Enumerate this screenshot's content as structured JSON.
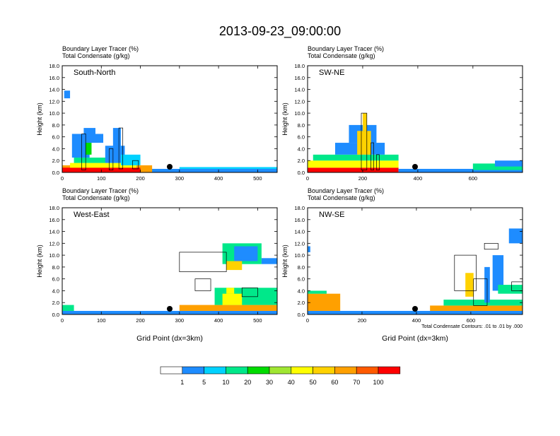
{
  "main_title": "2013-09-23_09:00:00",
  "colors": {
    "palette": [
      "#ffffff",
      "#1e8cff",
      "#00d2ff",
      "#00e88a",
      "#00dc00",
      "#a0e632",
      "#ffff00",
      "#ffd200",
      "#ffa000",
      "#ff5a00",
      "#ff0000"
    ]
  },
  "colorbar": {
    "labels": [
      "1",
      "5",
      "10",
      "20",
      "30",
      "40",
      "50",
      "60",
      "70",
      "100"
    ]
  },
  "chart_data": [
    {
      "type": "heatmap",
      "name": "South-North",
      "title_line1": "Boundary Layer Tracer   (%)",
      "title_line2": "Total Condensate   (g/kg)",
      "ylabel": "Height (km)",
      "xlabel": "",
      "ylim": [
        0,
        18
      ],
      "xlim": [
        0,
        550
      ],
      "xticks": [
        "0",
        "100",
        "200",
        "300",
        "400",
        "500"
      ],
      "xtick_values": [
        0,
        100,
        200,
        300,
        400,
        500
      ],
      "yticks": [
        "0.0",
        "2.0",
        "4.0",
        "6.0",
        "8.0",
        "10.0",
        "12.0",
        "14.0",
        "16.0",
        "18.0"
      ],
      "marker_x": 275,
      "cells": [
        [
          0,
          550,
          0,
          0.6,
          1
        ],
        [
          0,
          230,
          0,
          1.2,
          8
        ],
        [
          0,
          200,
          0,
          0.8,
          10
        ],
        [
          20,
          190,
          0.8,
          1.6,
          6
        ],
        [
          30,
          150,
          1.6,
          2.5,
          3
        ],
        [
          25,
          70,
          2.5,
          6.5,
          1
        ],
        [
          55,
          85,
          5,
          7.5,
          1
        ],
        [
          85,
          105,
          5,
          6.5,
          1
        ],
        [
          60,
          75,
          3,
          5,
          4
        ],
        [
          110,
          160,
          1.6,
          4.5,
          1
        ],
        [
          130,
          150,
          2.5,
          7.5,
          1
        ],
        [
          150,
          200,
          1.2,
          3,
          2
        ],
        [
          5,
          20,
          12.5,
          13.8,
          1
        ],
        [
          300,
          550,
          0.6,
          0.9,
          2
        ]
      ],
      "contours": [
        [
          50,
          0.4,
          60,
          6.5
        ],
        [
          120,
          0.4,
          130,
          4
        ],
        [
          145,
          0.6,
          155,
          7.5
        ],
        [
          180,
          0.6,
          195,
          2
        ]
      ]
    },
    {
      "type": "heatmap",
      "name": "SW-NE",
      "title_line1": "Boundary Layer Tracer   (%)",
      "title_line2": "Total Condensate   (g/kg)",
      "ylabel": "Height (km)",
      "xlabel": "",
      "ylim": [
        0,
        18
      ],
      "xlim": [
        0,
        780
      ],
      "xticks": [
        "0",
        "200",
        "400",
        "600"
      ],
      "xtick_values": [
        0,
        200,
        400,
        600
      ],
      "yticks": [
        "0.0",
        "2.0",
        "4.0",
        "6.0",
        "8.0",
        "10.0",
        "12.0",
        "14.0",
        "16.0",
        "18.0"
      ],
      "marker_x": 390,
      "cells": [
        [
          0,
          330,
          0,
          0.8,
          10
        ],
        [
          0,
          330,
          0.8,
          2,
          6
        ],
        [
          20,
          330,
          2,
          3,
          3
        ],
        [
          100,
          280,
          3,
          5,
          1
        ],
        [
          150,
          250,
          5,
          8,
          1
        ],
        [
          180,
          230,
          3,
          7,
          7
        ],
        [
          200,
          215,
          7,
          10,
          7
        ],
        [
          330,
          780,
          0,
          0.6,
          1
        ],
        [
          600,
          780,
          0.4,
          1.5,
          3
        ],
        [
          680,
          780,
          1,
          2,
          1
        ]
      ],
      "contours": [
        [
          195,
          0.4,
          215,
          10
        ],
        [
          230,
          0.4,
          240,
          5
        ],
        [
          250,
          0.4,
          260,
          3
        ]
      ]
    },
    {
      "type": "heatmap",
      "name": "West-East",
      "title_line1": "Boundary Layer Tracer   (%)",
      "title_line2": "Total Condensate   (g/kg)",
      "ylabel": "Height (km)",
      "xlabel": "Grid Point (dx=3km)",
      "ylim": [
        0,
        18
      ],
      "xlim": [
        0,
        550
      ],
      "xticks": [
        "0",
        "100",
        "200",
        "300",
        "400",
        "500"
      ],
      "xtick_values": [
        0,
        100,
        200,
        300,
        400,
        500
      ],
      "yticks": [
        "0.0",
        "2.0",
        "4.0",
        "6.0",
        "8.0",
        "10.0",
        "12.0",
        "14.0",
        "16.0",
        "18.0"
      ],
      "marker_x": 275,
      "cells": [
        [
          0,
          550,
          0,
          0.6,
          1
        ],
        [
          0,
          30,
          0.6,
          1.6,
          3
        ],
        [
          300,
          550,
          0.6,
          1.6,
          8
        ],
        [
          390,
          550,
          1.6,
          4.5,
          3
        ],
        [
          410,
          460,
          1.6,
          3.5,
          6
        ],
        [
          420,
          440,
          3.5,
          4.5,
          6
        ],
        [
          410,
          510,
          8.5,
          12,
          3
        ],
        [
          440,
          500,
          9,
          11.5,
          1
        ],
        [
          420,
          460,
          7.5,
          9,
          7
        ],
        [
          510,
          550,
          8.5,
          9.5,
          1
        ]
      ],
      "contours": [
        [
          300,
          7.2,
          420,
          10.5
        ],
        [
          340,
          4,
          380,
          6
        ],
        [
          460,
          3,
          500,
          4.5
        ]
      ]
    },
    {
      "type": "heatmap",
      "name": "NW-SE",
      "title_line1": "Boundary Layer Tracer   (%)",
      "title_line2": "Total Condensate   (g/kg)",
      "ylabel": "Height (km)",
      "xlabel": "Grid Point (dx=3km)",
      "ylim": [
        0,
        18
      ],
      "xlim": [
        0,
        790
      ],
      "xticks": [
        "0",
        "200",
        "400",
        "600"
      ],
      "xtick_values": [
        0,
        200,
        400,
        600
      ],
      "yticks": [
        "0.0",
        "2.0",
        "4.0",
        "6.0",
        "8.0",
        "10.0",
        "12.0",
        "14.0",
        "16.0",
        "18.0"
      ],
      "marker_x": 395,
      "cells": [
        [
          0,
          790,
          0,
          0.6,
          1
        ],
        [
          0,
          120,
          0.6,
          3.5,
          8
        ],
        [
          0,
          70,
          3.5,
          4,
          3
        ],
        [
          450,
          790,
          0.6,
          1.5,
          8
        ],
        [
          500,
          790,
          1.5,
          2.5,
          3
        ],
        [
          580,
          610,
          3,
          7,
          7
        ],
        [
          650,
          670,
          2,
          8,
          1
        ],
        [
          680,
          720,
          4,
          10,
          1
        ],
        [
          740,
          790,
          12,
          14.5,
          1
        ],
        [
          700,
          790,
          3.5,
          5,
          3
        ],
        [
          0,
          10,
          10.5,
          11.5,
          1
        ]
      ],
      "contours": [
        [
          540,
          4,
          620,
          10
        ],
        [
          610,
          1.5,
          660,
          6
        ],
        [
          650,
          11,
          700,
          12
        ],
        [
          750,
          4,
          790,
          5.5
        ]
      ],
      "footnote": "Total Condensate Contours: .01 to .01 by .000"
    }
  ]
}
